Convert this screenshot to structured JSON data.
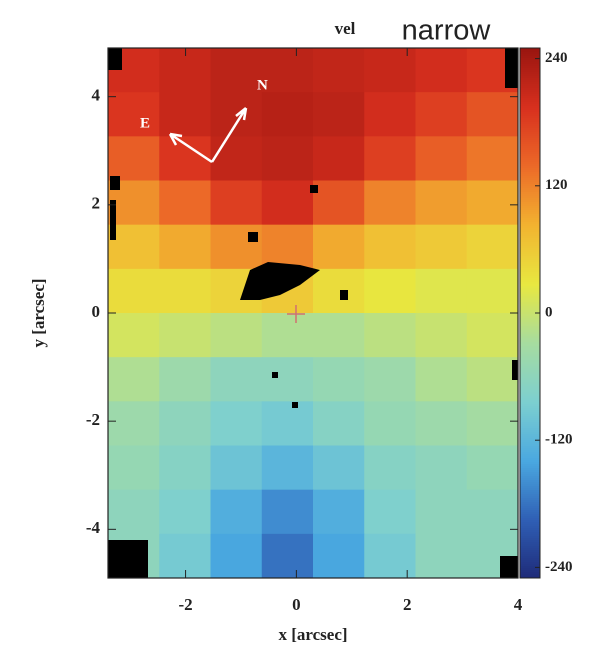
{
  "chart_data": {
    "type": "heatmap",
    "title": "vel",
    "subtitle": "narrow",
    "x_label": "x [arcsec]",
    "y_label": "y [arcsec]",
    "annotations": [
      "N",
      "E"
    ],
    "xlim": [
      -3.4,
      4
    ],
    "xticks": [
      -2,
      0,
      2,
      4
    ],
    "ylim": [
      -4.9,
      4.9
    ],
    "yticks": [
      -4,
      -2,
      0,
      2,
      4
    ],
    "clim": [
      -250,
      250
    ],
    "cticks": [
      -240,
      -120,
      0,
      120,
      240
    ],
    "colormap": [
      "#1e2a78",
      "#2f5fb5",
      "#4aa8e0",
      "#7ccfd0",
      "#a6dca0",
      "#e8e840",
      "#f2b330",
      "#ec6a28",
      "#d8301e",
      "#9a1510"
    ],
    "z": [
      [
        200,
        210,
        220,
        220,
        215,
        210,
        200,
        190
      ],
      [
        190,
        210,
        220,
        225,
        220,
        200,
        180,
        160
      ],
      [
        150,
        190,
        215,
        220,
        210,
        180,
        150,
        130
      ],
      [
        110,
        140,
        180,
        200,
        160,
        120,
        100,
        90
      ],
      [
        70,
        90,
        110,
        120,
        90,
        70,
        60,
        50
      ],
      [
        40,
        40,
        50,
        60,
        40,
        30,
        20,
        20
      ],
      [
        10,
        0,
        -10,
        -20,
        -20,
        -10,
        0,
        10
      ],
      [
        -20,
        -40,
        -60,
        -60,
        -50,
        -40,
        -20,
        -10
      ],
      [
        -40,
        -60,
        -80,
        -90,
        -70,
        -50,
        -40,
        -30
      ],
      [
        -50,
        -70,
        -100,
        -120,
        -100,
        -70,
        -60,
        -50
      ],
      [
        -60,
        -80,
        -130,
        -160,
        -130,
        -80,
        -60,
        -60
      ],
      [
        -60,
        -90,
        -140,
        -180,
        -140,
        -90,
        -60,
        -60
      ]
    ]
  }
}
